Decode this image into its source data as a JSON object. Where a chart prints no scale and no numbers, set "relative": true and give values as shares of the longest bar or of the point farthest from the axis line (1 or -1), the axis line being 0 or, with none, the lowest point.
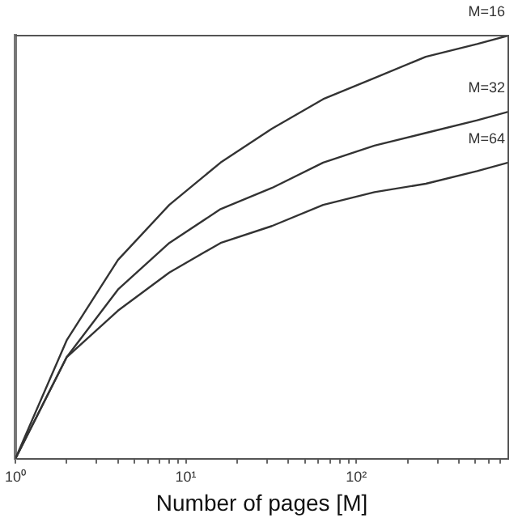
{
  "chart_data": {
    "type": "line",
    "xlabel": "Number of pages [M]",
    "relative": true,
    "log": "x",
    "legend": false,
    "grid": false,
    "marker": "none",
    "x": [
      1,
      2,
      4,
      8,
      16,
      32,
      64,
      128,
      256,
      512,
      780
    ],
    "xlim": [
      1,
      780
    ],
    "xticks": [
      {
        "value": 1,
        "label": "10⁰"
      },
      {
        "value": 2,
        "label": null
      },
      {
        "value": 3,
        "label": null
      },
      {
        "value": 4,
        "label": null
      },
      {
        "value": 5,
        "label": null
      },
      {
        "value": 6,
        "label": null
      },
      {
        "value": 7,
        "label": null
      },
      {
        "value": 8,
        "label": null
      },
      {
        "value": 9,
        "label": null
      },
      {
        "value": 10,
        "label": "10¹"
      },
      {
        "value": 20,
        "label": null
      },
      {
        "value": 30,
        "label": null
      },
      {
        "value": 40,
        "label": null
      },
      {
        "value": 50,
        "label": null
      },
      {
        "value": 60,
        "label": null
      },
      {
        "value": 70,
        "label": null
      },
      {
        "value": 80,
        "label": null
      },
      {
        "value": 90,
        "label": null
      },
      {
        "value": 100,
        "label": "10²"
      },
      {
        "value": 200,
        "label": null
      },
      {
        "value": 300,
        "label": null
      },
      {
        "value": 400,
        "label": null
      },
      {
        "value": 500,
        "label": null
      },
      {
        "value": 600,
        "label": null
      },
      {
        "value": 700,
        "label": null
      }
    ],
    "series": [
      {
        "name": "M=16",
        "color": "#333333",
        "values": [
          0,
          0.28,
          0.47,
          0.6,
          0.7,
          0.78,
          0.85,
          0.9,
          0.95,
          0.98,
          1
        ]
      },
      {
        "name": "M=32",
        "color": "#333333",
        "values": [
          0,
          0.24,
          0.4,
          0.51,
          0.59,
          0.64,
          0.7,
          0.74,
          0.77,
          0.8,
          0.82
        ]
      },
      {
        "name": "M=64",
        "color": "#333333",
        "values": [
          0,
          0.24,
          0.35,
          0.44,
          0.51,
          0.55,
          0.6,
          0.63,
          0.65,
          0.68,
          0.7
        ]
      }
    ]
  }
}
